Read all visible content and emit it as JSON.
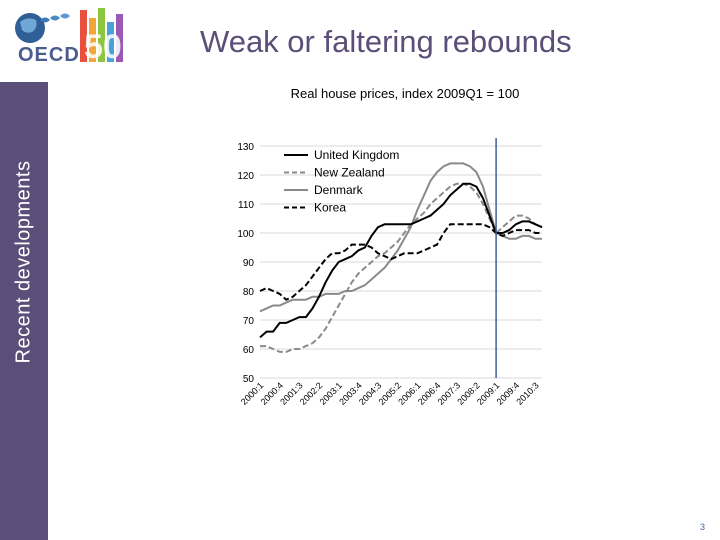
{
  "slide": {
    "title": "Weak or faltering rebounds",
    "section": "Recent developments",
    "page_number": "3",
    "logo_text": "OECD",
    "logo_number": "50"
  },
  "colors": {
    "sidebar": "#5b4e78",
    "title": "#5b4e78",
    "vline": "#3f6196",
    "uk": "#000000",
    "nz": "#8a8a8a",
    "dk": "#8a8a8a",
    "kr": "#000000",
    "grid": "#d9d9d9"
  },
  "chart_data": {
    "type": "line",
    "title": "Real house prices, index 2009Q1 = 100",
    "ylim": [
      50,
      130
    ],
    "yticks": [
      50,
      60,
      70,
      80,
      90,
      100,
      110,
      120,
      130
    ],
    "grid": "horizontal",
    "legend": "top-left",
    "vline_at": "2009:1",
    "x": [
      "2000:1",
      "2000:2",
      "2000:3",
      "2000:4",
      "2001:1",
      "2001:2",
      "2001:3",
      "2001:4",
      "2002:1",
      "2002:2",
      "2002:3",
      "2002:4",
      "2003:1",
      "2003:2",
      "2003:3",
      "2003:4",
      "2004:1",
      "2004:2",
      "2004:3",
      "2004:4",
      "2005:1",
      "2005:2",
      "2005:3",
      "2005:4",
      "2006:1",
      "2006:2",
      "2006:3",
      "2006:4",
      "2007:1",
      "2007:2",
      "2007:3",
      "2007:4",
      "2008:1",
      "2008:2",
      "2008:3",
      "2008:4",
      "2009:1",
      "2009:2",
      "2009:3",
      "2009:4",
      "2010:1",
      "2010:2",
      "2010:3",
      "2010:4"
    ],
    "tick_labels": [
      "2000:1",
      "2000:4",
      "2001:3",
      "2002:2",
      "2003:1",
      "2003:4",
      "2004:3",
      "2005:2",
      "2006:1",
      "2006:4",
      "2007:3",
      "2008:2",
      "2009:1",
      "2009:4",
      "2010:3"
    ],
    "series": [
      {
        "name": "United Kingdom",
        "key": "uk",
        "dash": "solid",
        "values": [
          64,
          66,
          66,
          69,
          69,
          70,
          71,
          71,
          74,
          78,
          83,
          87,
          90,
          91,
          92,
          94,
          95,
          99,
          102,
          103,
          103,
          103,
          103,
          103,
          104,
          105,
          106,
          108,
          110,
          113,
          115,
          117,
          117,
          116,
          112,
          106,
          100,
          100,
          101,
          103,
          104,
          104,
          103,
          102
        ]
      },
      {
        "name": "New Zealand",
        "key": "nz",
        "dash": "dashed",
        "values": [
          61,
          61,
          60,
          59,
          59,
          60,
          60,
          61,
          62,
          64,
          67,
          71,
          75,
          79,
          83,
          86,
          88,
          90,
          92,
          93,
          95,
          97,
          100,
          103,
          105,
          107,
          110,
          112,
          114,
          116,
          117,
          117,
          116,
          114,
          110,
          105,
          100,
          102,
          104,
          106,
          106,
          105,
          103,
          102
        ]
      },
      {
        "name": "Denmark",
        "key": "dk",
        "dash": "solid",
        "values": [
          73,
          74,
          75,
          75,
          76,
          77,
          77,
          77,
          78,
          78,
          79,
          79,
          79,
          80,
          80,
          81,
          82,
          84,
          86,
          88,
          91,
          94,
          98,
          102,
          108,
          113,
          118,
          121,
          123,
          124,
          124,
          124,
          123,
          121,
          116,
          108,
          100,
          99,
          98,
          98,
          99,
          99,
          98,
          98
        ]
      },
      {
        "name": "Korea",
        "key": "kr",
        "dash": "dashed",
        "values": [
          80,
          81,
          80,
          79,
          77,
          78,
          80,
          82,
          85,
          88,
          91,
          93,
          93,
          94,
          96,
          96,
          96,
          95,
          93,
          92,
          91,
          92,
          93,
          93,
          93,
          94,
          95,
          96,
          100,
          103,
          103,
          103,
          103,
          103,
          103,
          102,
          100,
          99,
          100,
          101,
          101,
          101,
          100,
          100
        ]
      }
    ]
  }
}
